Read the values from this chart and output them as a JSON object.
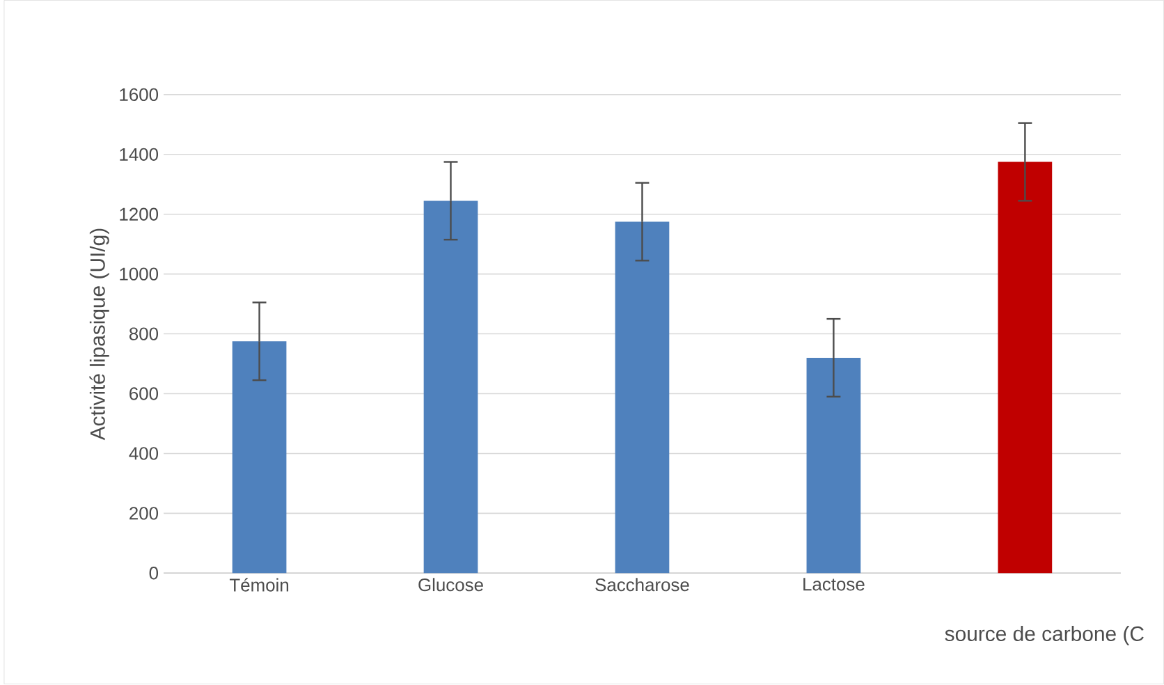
{
  "chart_data": {
    "type": "bar",
    "categories": [
      "Témoin",
      "Glucose",
      "Saccharose",
      "Lactose",
      null
    ],
    "values": [
      775,
      1245,
      1175,
      720,
      1375
    ],
    "errors": [
      130,
      130,
      130,
      130,
      130
    ],
    "colors": [
      "#4f81bd",
      "#4f81bd",
      "#4f81bd",
      "#4f81bd",
      "#c00000"
    ],
    "ylabel": "Activité lipasique (UI/g)",
    "xlabel": "source de carbone  (C",
    "ylim": [
      0,
      1600
    ],
    "yticks": [
      0,
      200,
      400,
      600,
      800,
      1000,
      1200,
      1400,
      1600
    ],
    "grid": "y"
  }
}
